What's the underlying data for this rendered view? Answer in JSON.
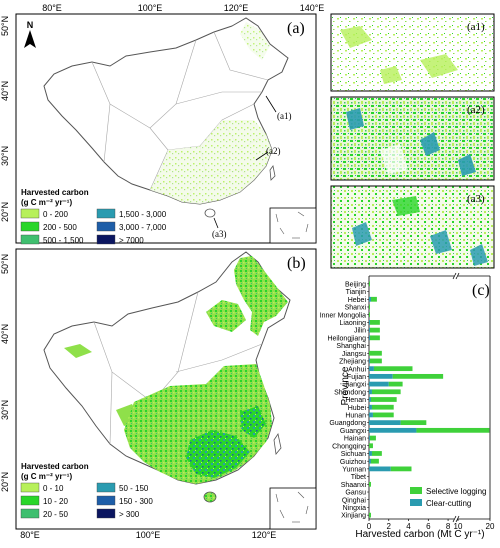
{
  "panel_a": {
    "label": "(a)",
    "top_ticks": [
      "80°E",
      "100°E",
      "120°E",
      "140°E"
    ],
    "left_ticks": [
      "50°N",
      "40°N",
      "30°N",
      "20°N"
    ],
    "north": "N",
    "legend_title_line1": "Harvested carbon",
    "legend_title_line2": "(g C m⁻² yr⁻¹)",
    "legend": [
      {
        "label": "0 - 200",
        "color": "#b7f05a"
      },
      {
        "label": "200 - 500",
        "color": "#29d629"
      },
      {
        "label": "500 - 1,500",
        "color": "#3fbf6f"
      },
      {
        "label": "1,500 - 3,000",
        "color": "#2a9bb0"
      },
      {
        "label": "3,000 - 7,000",
        "color": "#1e5ea8"
      },
      {
        "label": "> 7000",
        "color": "#0b1660"
      }
    ],
    "callouts": [
      "(a1)",
      "(a2)",
      "(a3)"
    ]
  },
  "panel_b": {
    "label": "(b)",
    "bottom_ticks": [
      "80°E",
      "100°E",
      "120°E"
    ],
    "left_ticks": [
      "50°N",
      "40°N",
      "30°N",
      "20°N"
    ],
    "legend_title_line1": "Harvested carbon",
    "legend_title_line2": "(g C m⁻² yr⁻¹)",
    "legend": [
      {
        "label": "0 - 10",
        "color": "#b7f05a"
      },
      {
        "label": "10 - 20",
        "color": "#29d629"
      },
      {
        "label": "20 - 50",
        "color": "#3fbf6f"
      },
      {
        "label": "50 - 150",
        "color": "#2a9bb0"
      },
      {
        "label": "150 - 300",
        "color": "#1e5ea8"
      },
      {
        "label": "> 300",
        "color": "#0b1660"
      }
    ]
  },
  "insets": [
    {
      "label": "(a1)"
    },
    {
      "label": "(a2)"
    },
    {
      "label": "(a3)"
    }
  ],
  "chart_data": {
    "type": "bar",
    "orientation": "horizontal",
    "stacked": true,
    "panel_label": "(c)",
    "ylabel": "Province",
    "xlabel": "Harvested carbon (Mt C yr⁻¹)",
    "xticks": [
      "0",
      "2",
      "4",
      "6",
      "8",
      "10",
      "20"
    ],
    "x_break": [
      8.6,
      9.2
    ],
    "xlim": [
      0,
      20
    ],
    "legend_position": "bottom-right",
    "categories": [
      "Beijing",
      "Tianjin",
      "Hebei",
      "Shanxi",
      "Inner Mongolia",
      "Liaoning",
      "Jilin",
      "Heilongjiang",
      "Shanghai",
      "Jiangsu",
      "Zhejiang",
      "Anhui",
      "Fujian",
      "Jiangxi",
      "Shandong",
      "Henan",
      "Hubei",
      "Hunan",
      "Guangdong",
      "Guangxi",
      "Hainan",
      "Chongqing",
      "Sichuan",
      "Guizhou",
      "Yunnan",
      "Tibet",
      "Shaanxi",
      "Gansu",
      "Qinghai",
      "Ningxia",
      "Xinjiang"
    ],
    "series": [
      {
        "name": "Clear-cutting",
        "color": "#2a9bb0",
        "values": [
          0,
          0,
          0.2,
          0,
          0,
          0.1,
          0.1,
          0.1,
          0,
          0,
          0.1,
          0.5,
          2.4,
          2.0,
          0.3,
          0.2,
          0.3,
          0.4,
          3.2,
          4.8,
          0.1,
          0,
          0.3,
          0.2,
          2.2,
          0,
          0,
          0,
          0,
          0,
          0
        ]
      },
      {
        "name": "Selective logging",
        "color": "#3fd13a",
        "values": [
          0.1,
          0,
          0.6,
          0.1,
          0.1,
          1.0,
          1.0,
          1.0,
          0,
          1.3,
          1.2,
          3.9,
          5.1,
          1.4,
          2.9,
          2.6,
          2.2,
          2.1,
          2.6,
          15.0,
          0.6,
          0.4,
          1.0,
          0.8,
          2.1,
          0,
          0.2,
          0,
          0,
          0,
          0.2
        ]
      }
    ]
  }
}
